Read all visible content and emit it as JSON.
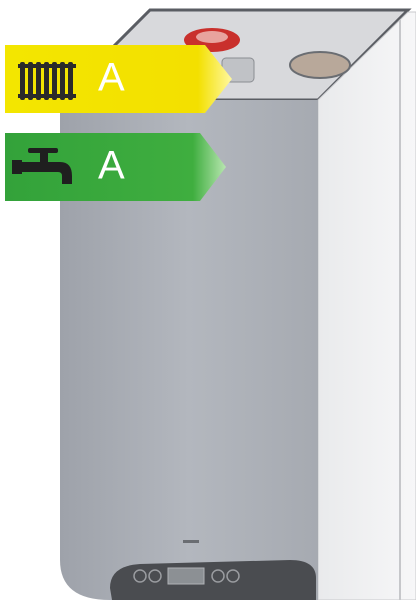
{
  "energy_labels": [
    {
      "rating": "A"
    },
    {
      "rating": "A"
    }
  ]
}
